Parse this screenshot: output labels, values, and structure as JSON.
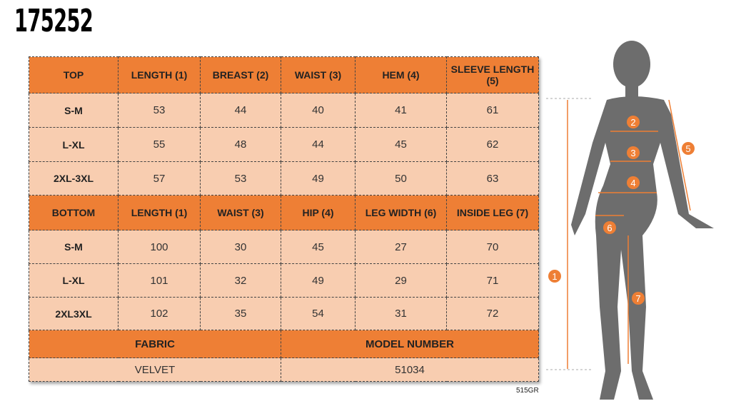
{
  "title": "175252",
  "top": {
    "headers": [
      "TOP",
      "LENGTH (1)",
      "BREAST (2)",
      "WAIST (3)",
      "HEM (4)",
      "SLEEVE LENGTH (5)"
    ],
    "rows": [
      [
        "S-M",
        "53",
        "44",
        "40",
        "41",
        "61"
      ],
      [
        "L-XL",
        "55",
        "48",
        "44",
        "45",
        "62"
      ],
      [
        "2XL-3XL",
        "57",
        "53",
        "49",
        "50",
        "63"
      ]
    ]
  },
  "bottom": {
    "headers": [
      "BOTTOM",
      "LENGTH (1)",
      "WAIST (3)",
      "HIP (4)",
      "LEG WIDTH (6)",
      "INSIDE LEG (7)"
    ],
    "rows": [
      [
        "S-M",
        "100",
        "30",
        "45",
        "27",
        "70"
      ],
      [
        "L-XL",
        "101",
        "32",
        "49",
        "29",
        "71"
      ],
      [
        "2XL3XL",
        "102",
        "35",
        "54",
        "31",
        "72"
      ]
    ]
  },
  "footer": {
    "fabric_label": "FABRIC",
    "fabric_value": "VELVET",
    "model_label": "MODEL NUMBER",
    "model_value": "51034"
  },
  "code": "515GR",
  "figure": {
    "markers": [
      "1",
      "2",
      "3",
      "4",
      "5",
      "6",
      "7"
    ],
    "accent": "#ee7f35",
    "silhouette": "#6d6d6d"
  }
}
